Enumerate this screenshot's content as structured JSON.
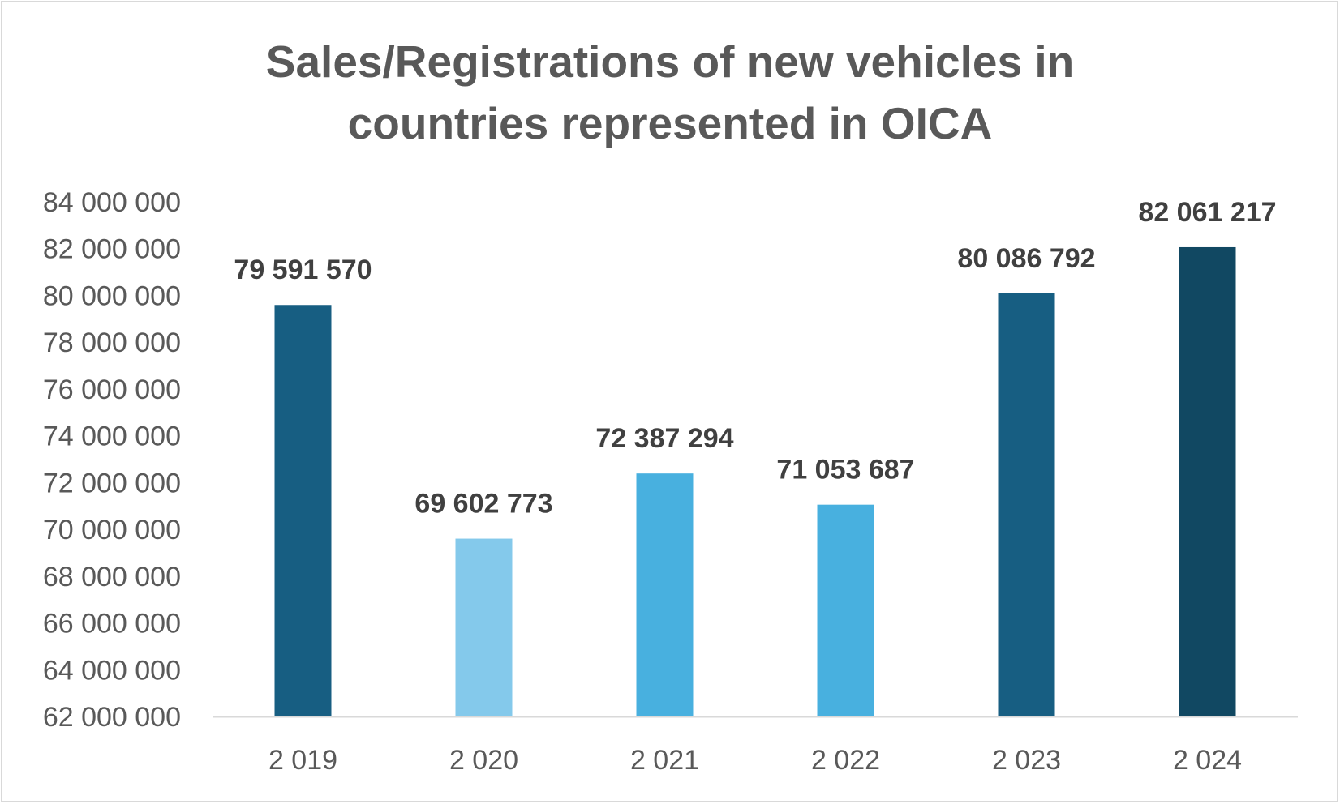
{
  "chart_data": {
    "type": "bar",
    "title": "Sales/Registrations of new vehicles in countries represented in OICA",
    "title_lines": [
      "Sales/Registrations of new vehicles in",
      "countries represented in OICA"
    ],
    "categories": [
      "2 019",
      "2 020",
      "2 021",
      "2 022",
      "2 023",
      "2 024"
    ],
    "values": [
      79591570,
      69602773,
      72387294,
      71053687,
      80086792,
      82061217
    ],
    "data_labels": [
      "79 591 570",
      "69 602 773",
      "72 387 294",
      "71 053 687",
      "80 086 792",
      "82 061 217"
    ],
    "bar_colors": [
      "#175e82",
      "#84c9eb",
      "#48b0df",
      "#48b0df",
      "#175e82",
      "#114862"
    ],
    "ylim": [
      62000000,
      84000000
    ],
    "yticks": [
      62000000,
      64000000,
      66000000,
      68000000,
      70000000,
      72000000,
      74000000,
      76000000,
      78000000,
      80000000,
      82000000,
      84000000
    ],
    "ytick_labels": [
      "62 000 000",
      "64 000 000",
      "66 000 000",
      "68 000 000",
      "70 000 000",
      "72 000 000",
      "74 000 000",
      "76 000 000",
      "78 000 000",
      "80 000 000",
      "82 000 000",
      "84 000 000"
    ],
    "xlabel": "",
    "ylabel": "",
    "grid": false,
    "legend": false,
    "colors": {
      "text": "#595959",
      "data_label": "#404040",
      "axis_line": "#d9d9d9"
    }
  }
}
